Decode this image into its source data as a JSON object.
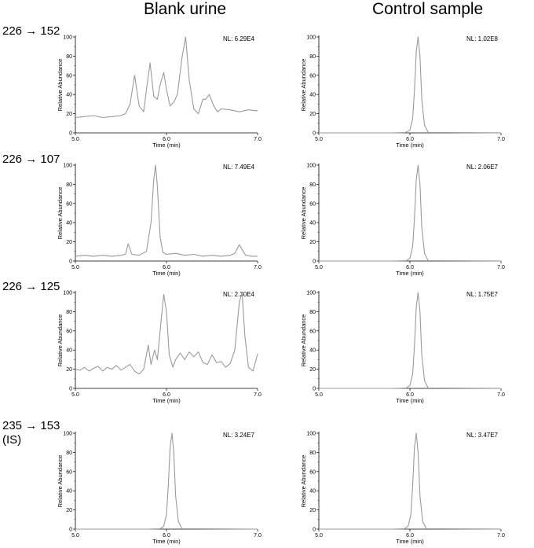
{
  "columns": [
    "Blank urine",
    "Control sample"
  ],
  "rows": [
    {
      "label": "226 → 152",
      "sublabel": ""
    },
    {
      "label": "226 → 107",
      "sublabel": ""
    },
    {
      "label": "226 → 125",
      "sublabel": ""
    },
    {
      "label": "235 → 153",
      "sublabel": "(IS)"
    }
  ],
  "chart_data": [
    {
      "type": "line",
      "panel": "226 → 152 / Blank urine",
      "nl": "NL: 6.29E4",
      "xlabel": "Time (min)",
      "ylabel": "Relative Abundance",
      "xlim": [
        5.0,
        7.0
      ],
      "ylim": [
        0,
        100
      ],
      "xticks": [
        "5.0",
        "6.0",
        "7.0"
      ],
      "yticks": [
        "0",
        "20",
        "40",
        "60",
        "80",
        "100"
      ],
      "x": [
        5.0,
        5.1,
        5.2,
        5.3,
        5.4,
        5.5,
        5.55,
        5.6,
        5.65,
        5.7,
        5.75,
        5.78,
        5.82,
        5.86,
        5.9,
        5.93,
        5.97,
        6.0,
        6.04,
        6.08,
        6.12,
        6.17,
        6.21,
        6.25,
        6.3,
        6.35,
        6.4,
        6.43,
        6.47,
        6.52,
        6.56,
        6.6,
        6.7,
        6.8,
        6.9,
        7.0
      ],
      "y": [
        16,
        17,
        18,
        16,
        17,
        18,
        20,
        30,
        60,
        28,
        22,
        45,
        73,
        38,
        35,
        50,
        63,
        45,
        28,
        32,
        40,
        78,
        100,
        55,
        25,
        20,
        35,
        35,
        40,
        28,
        22,
        25,
        24,
        22,
        24,
        23
      ],
      "color": "#9a9a9a"
    },
    {
      "type": "line",
      "panel": "226 → 152 / Control sample",
      "nl": "NL: 1.02E8",
      "xlabel": "Time (min)",
      "ylabel": "Relative Abundance",
      "xlim": [
        5.0,
        7.0
      ],
      "ylim": [
        0,
        100
      ],
      "xticks": [
        "5.0",
        "6.0",
        "7.0"
      ],
      "yticks": [
        "0",
        "20",
        "40",
        "60",
        "80",
        "100"
      ],
      "x": [
        5.0,
        5.8,
        5.95,
        6.0,
        6.03,
        6.05,
        6.07,
        6.09,
        6.11,
        6.13,
        6.16,
        6.2,
        7.0
      ],
      "y": [
        0,
        0,
        0.3,
        3,
        15,
        45,
        85,
        100,
        80,
        35,
        8,
        0.5,
        0
      ],
      "color": "#9a9a9a"
    },
    {
      "type": "line",
      "panel": "226 → 107 / Blank urine",
      "nl": "NL: 7.49E4",
      "xlabel": "Time (min)",
      "ylabel": "Relative Abundance",
      "xlim": [
        5.0,
        7.0
      ],
      "ylim": [
        0,
        100
      ],
      "xticks": [
        "5.0",
        "6.0",
        "7.0"
      ],
      "yticks": [
        "0",
        "20",
        "40",
        "60",
        "80",
        "100"
      ],
      "x": [
        5.0,
        5.1,
        5.2,
        5.3,
        5.4,
        5.5,
        5.55,
        5.58,
        5.62,
        5.7,
        5.78,
        5.83,
        5.86,
        5.88,
        5.9,
        5.93,
        5.96,
        6.0,
        6.1,
        6.2,
        6.3,
        6.4,
        6.5,
        6.6,
        6.7,
        6.75,
        6.8,
        6.83,
        6.87,
        6.93,
        7.0
      ],
      "y": [
        5,
        6,
        5,
        6,
        5,
        6,
        7,
        18,
        7,
        6,
        10,
        40,
        85,
        100,
        78,
        25,
        9,
        7,
        8,
        6,
        7,
        5,
        6,
        5,
        6,
        8,
        17,
        12,
        6,
        5,
        5
      ],
      "color": "#9a9a9a"
    },
    {
      "type": "line",
      "panel": "226 → 107 / Control sample",
      "nl": "NL: 2.06E7",
      "xlabel": "Time (min)",
      "ylabel": "Relative Abundance",
      "xlim": [
        5.0,
        7.0
      ],
      "ylim": [
        0,
        100
      ],
      "xticks": [
        "5.0",
        "6.0",
        "7.0"
      ],
      "yticks": [
        "0",
        "20",
        "40",
        "60",
        "80",
        "100"
      ],
      "x": [
        5.0,
        5.8,
        5.96,
        6.0,
        6.03,
        6.05,
        6.07,
        6.09,
        6.11,
        6.13,
        6.16,
        6.2,
        7.0
      ],
      "y": [
        0,
        0,
        0.3,
        3,
        15,
        45,
        85,
        100,
        80,
        35,
        8,
        0.5,
        0
      ],
      "color": "#9a9a9a"
    },
    {
      "type": "line",
      "panel": "226 → 125 / Blank urine",
      "nl": "NL: 2.30E4",
      "xlabel": "Time (min)",
      "ylabel": "Relative Abundance",
      "xlim": [
        5.0,
        7.0
      ],
      "ylim": [
        0,
        100
      ],
      "xticks": [
        "5.0",
        "6.0",
        "7.0"
      ],
      "yticks": [
        "0",
        "20",
        "40",
        "60",
        "80",
        "100"
      ],
      "x": [
        5.0,
        5.05,
        5.1,
        5.15,
        5.2,
        5.25,
        5.3,
        5.35,
        5.4,
        5.45,
        5.5,
        5.55,
        5.6,
        5.65,
        5.7,
        5.75,
        5.8,
        5.83,
        5.87,
        5.9,
        5.93,
        5.97,
        6.0,
        6.03,
        6.07,
        6.1,
        6.15,
        6.2,
        6.25,
        6.3,
        6.35,
        6.4,
        6.45,
        6.5,
        6.55,
        6.6,
        6.65,
        6.7,
        6.75,
        6.8,
        6.83,
        6.86,
        6.9,
        6.95,
        7.0
      ],
      "y": [
        20,
        19,
        22,
        18,
        21,
        23,
        18,
        22,
        20,
        24,
        19,
        22,
        25,
        18,
        15,
        20,
        45,
        25,
        40,
        30,
        60,
        98,
        80,
        35,
        22,
        30,
        37,
        30,
        38,
        33,
        38,
        27,
        25,
        35,
        27,
        28,
        22,
        26,
        40,
        90,
        100,
        55,
        22,
        18,
        36
      ],
      "color": "#9a9a9a"
    },
    {
      "type": "line",
      "panel": "226 → 125 / Control sample",
      "nl": "NL: 1.75E7",
      "xlabel": "Time (min)",
      "ylabel": "Relative Abundance",
      "xlim": [
        5.0,
        7.0
      ],
      "ylim": [
        0,
        100
      ],
      "xticks": [
        "5.0",
        "6.0",
        "7.0"
      ],
      "yticks": [
        "0",
        "20",
        "40",
        "60",
        "80",
        "100"
      ],
      "x": [
        5.0,
        5.8,
        5.96,
        6.0,
        6.03,
        6.05,
        6.07,
        6.09,
        6.11,
        6.13,
        6.16,
        6.2,
        7.0
      ],
      "y": [
        0,
        0,
        0.3,
        3,
        15,
        45,
        85,
        100,
        80,
        35,
        8,
        0.5,
        0
      ],
      "color": "#9a9a9a"
    },
    {
      "type": "line",
      "panel": "235 → 153 (IS) / Blank urine",
      "nl": "NL: 3.24E7",
      "xlabel": "Time (min)",
      "ylabel": "Relative Abundance",
      "xlim": [
        5.0,
        7.0
      ],
      "ylim": [
        0,
        100
      ],
      "xticks": [
        "5.0",
        "6.0",
        "7.0"
      ],
      "yticks": [
        "0",
        "20",
        "40",
        "60",
        "80",
        "100"
      ],
      "x": [
        5.0,
        5.8,
        5.93,
        5.97,
        6.0,
        6.02,
        6.04,
        6.06,
        6.08,
        6.1,
        6.13,
        6.17,
        7.0
      ],
      "y": [
        0,
        0,
        0.3,
        3,
        15,
        45,
        85,
        100,
        80,
        35,
        8,
        0.5,
        0
      ],
      "color": "#9a9a9a"
    },
    {
      "type": "line",
      "panel": "235 → 153 (IS) / Control sample",
      "nl": "NL: 3.47E7",
      "xlabel": "Time (min)",
      "ylabel": "Relative Abundance",
      "xlim": [
        5.0,
        7.0
      ],
      "ylim": [
        0,
        100
      ],
      "xticks": [
        "5.0",
        "6.0",
        "7.0"
      ],
      "yticks": [
        "0",
        "20",
        "40",
        "60",
        "80",
        "100"
      ],
      "x": [
        5.0,
        5.8,
        5.94,
        5.98,
        6.01,
        6.03,
        6.05,
        6.07,
        6.09,
        6.11,
        6.14,
        6.18,
        7.0
      ],
      "y": [
        0,
        0,
        0.3,
        3,
        15,
        45,
        85,
        100,
        80,
        35,
        8,
        0.5,
        0
      ],
      "color": "#9a9a9a"
    }
  ]
}
